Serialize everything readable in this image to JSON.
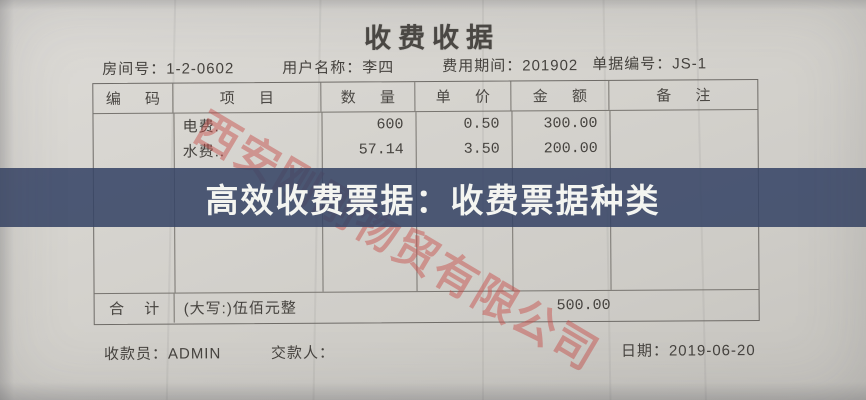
{
  "receipt": {
    "title": "收费收据",
    "meta": {
      "room_label": "房间号：",
      "room_value": "1-2-0602",
      "user_label": "用户名称：",
      "user_value": "李四",
      "period_label": "费用期间：",
      "period_value": "201902",
      "doc_no_label": "单据编号：",
      "doc_no_value": "JS-1"
    },
    "table": {
      "headers": [
        "编 码",
        "项 目",
        "数 量",
        "单 价",
        "金 额",
        "备 注"
      ],
      "rows": [
        {
          "code": "",
          "item": "电费.",
          "qty": "600",
          "price": "0.50",
          "amount": "300.00",
          "note": ""
        },
        {
          "code": "",
          "item": "水费..",
          "qty": "57.14",
          "price": "3.50",
          "amount": "200.00",
          "note": ""
        }
      ],
      "total": {
        "label": "合 计",
        "amount_in_words": "(大写:)伍佰元整",
        "amount": "500.00"
      }
    },
    "footer": {
      "cashier_label": "收款员：",
      "cashier_value": "ADMIN",
      "payer_label": "交款人：",
      "payer_value": "",
      "date_label": "日期：",
      "date_value": "2019-06-20"
    }
  },
  "overlay": {
    "banner_text": "高效收费票据：收费票据种类"
  },
  "watermark": {
    "text": "西安刚刚物贸有限公司"
  },
  "colors": {
    "paper": "#d5d3ce",
    "ink": "#46433f",
    "table_line": "#77746f",
    "banner_bg": "#4b5672",
    "banner_text": "#f4f5f1",
    "watermark_red": "#c64642"
  }
}
